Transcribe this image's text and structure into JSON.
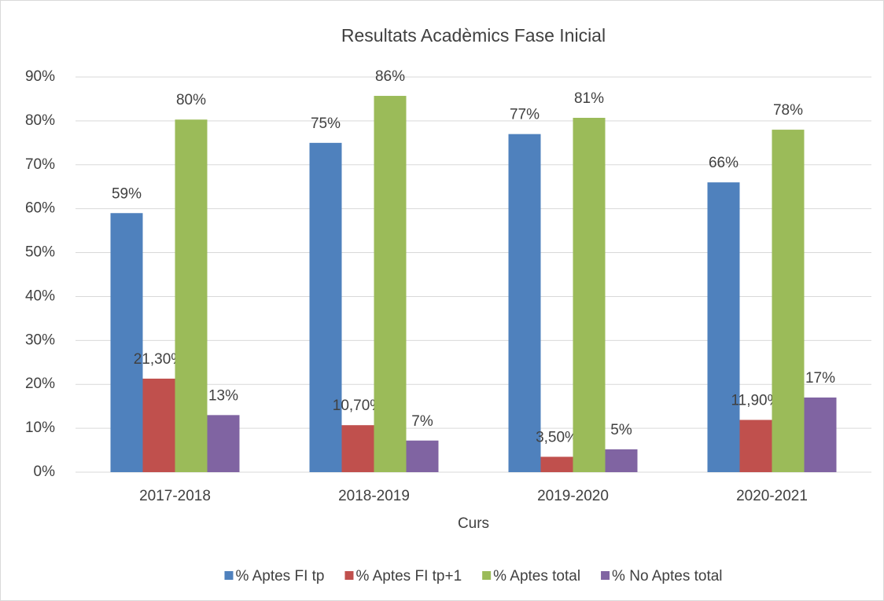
{
  "chart_data": {
    "type": "bar",
    "title": "Resultats Acadèmics Fase Inicial",
    "x_label": "Curs",
    "categories": [
      "2017-2018",
      "2018-2019",
      "2019-2020",
      "2020-2021"
    ],
    "series": [
      {
        "name": "% Aptes FI tp",
        "color": "#4f81bd",
        "values": [
          59,
          75,
          77,
          66
        ],
        "value_labels": [
          "59%",
          "75%",
          "77%",
          "66%"
        ]
      },
      {
        "name": "% Aptes FI tp+1",
        "color": "#c0504d",
        "values": [
          21.3,
          10.7,
          3.5,
          11.9
        ],
        "value_labels": [
          "21,30%",
          "10,70%",
          "3,50%",
          "11,90%"
        ]
      },
      {
        "name": "% Aptes total",
        "color": "#9bbb59",
        "values": [
          80.3,
          85.7,
          80.7,
          78
        ],
        "value_labels": [
          "80%",
          "86%",
          "81%",
          "78%"
        ]
      },
      {
        "name": "% No Aptes total",
        "color": "#8064a2",
        "values": [
          13,
          7.2,
          5.2,
          17
        ],
        "value_labels": [
          "13%",
          "7%",
          "5%",
          "17%"
        ]
      }
    ],
    "ylim": [
      0,
      90
    ],
    "yticks": [
      {
        "value": 0,
        "label": "0%"
      },
      {
        "value": 10,
        "label": "10%"
      },
      {
        "value": 20,
        "label": "20%"
      },
      {
        "value": 30,
        "label": "30%"
      },
      {
        "value": 40,
        "label": "40%"
      },
      {
        "value": 50,
        "label": "50%"
      },
      {
        "value": 60,
        "label": "60%"
      },
      {
        "value": 70,
        "label": "70%"
      },
      {
        "value": 80,
        "label": "80%"
      },
      {
        "value": 90,
        "label": "90%"
      }
    ],
    "grid": true,
    "legend": "bottom"
  }
}
